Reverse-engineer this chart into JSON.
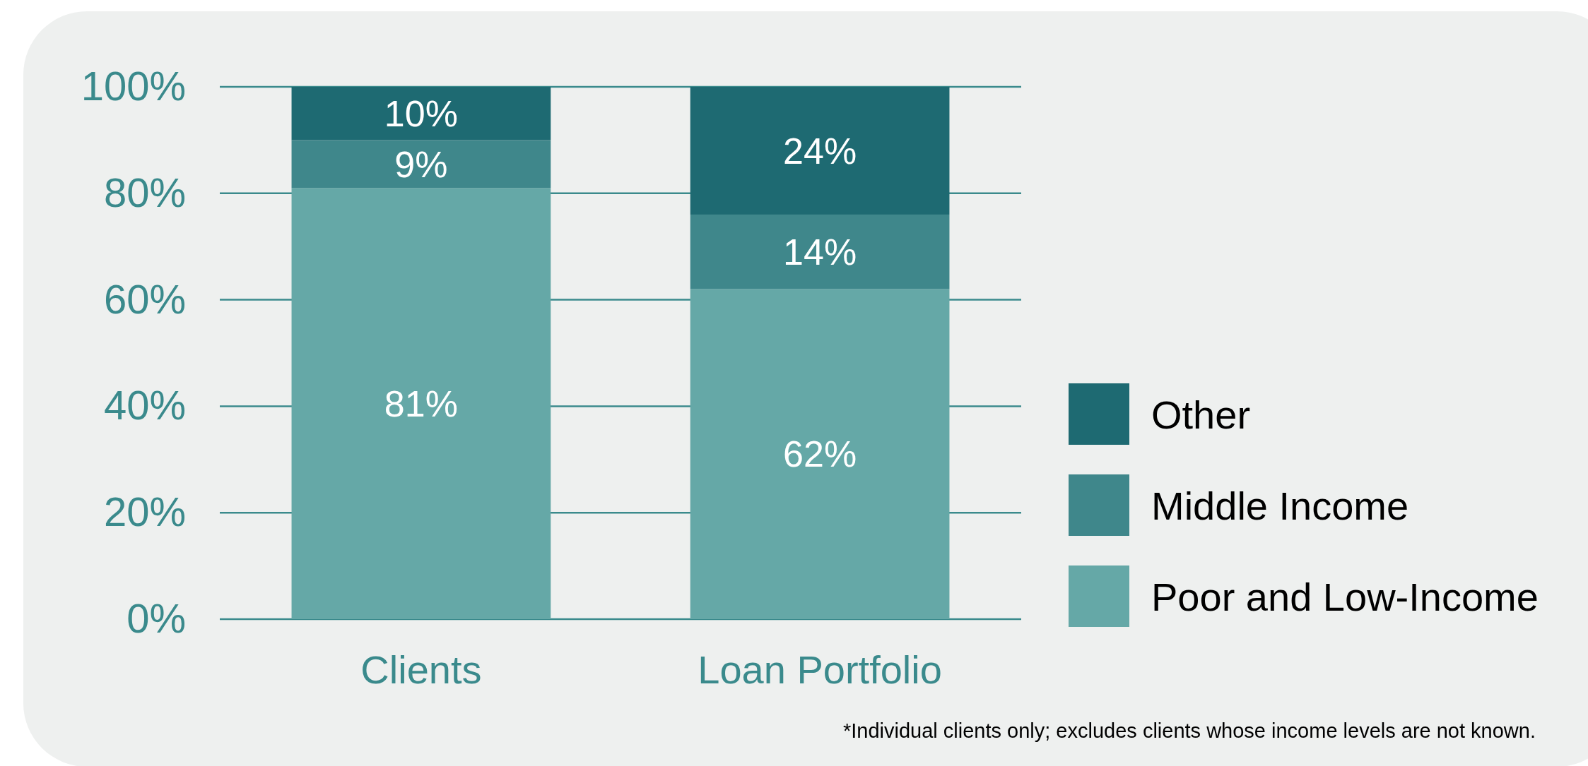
{
  "chart_data": {
    "type": "bar",
    "stacked": true,
    "categories": [
      "Clients",
      "Loan Portfolio"
    ],
    "series": [
      {
        "name": "Poor and Low-Income",
        "color": "#65a8a7",
        "values": [
          81,
          62
        ],
        "value_labels": [
          "81%",
          "62%"
        ]
      },
      {
        "name": "Middle Income",
        "color": "#3f878b",
        "values": [
          9,
          14
        ],
        "value_labels": [
          "9%",
          "14%"
        ]
      },
      {
        "name": "Other",
        "color": "#1e6a72",
        "values": [
          10,
          24
        ],
        "value_labels": [
          "10%",
          "24%"
        ]
      }
    ],
    "ylim": [
      0,
      100
    ],
    "yticks": [
      {
        "value": 0,
        "label": "0%"
      },
      {
        "value": 20,
        "label": "20%"
      },
      {
        "value": 40,
        "label": "40%"
      },
      {
        "value": 60,
        "label": "60%"
      },
      {
        "value": 80,
        "label": "80%"
      },
      {
        "value": 100,
        "label": "100%"
      }
    ],
    "grid": "y",
    "legend": "right",
    "annotations": [
      "*Individual clients only; excludes clients whose income levels are not known."
    ]
  }
}
